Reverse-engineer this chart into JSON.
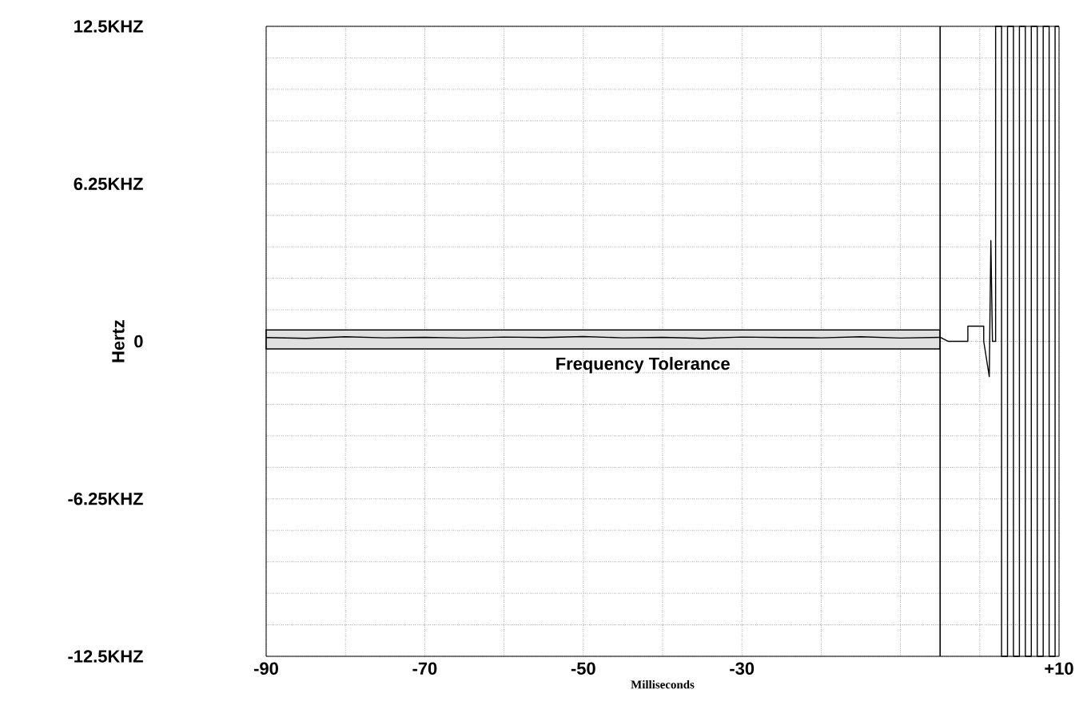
{
  "chart_data": {
    "type": "line",
    "xlabel": "Milliseconds",
    "ylabel": "Hertz",
    "xlim": [
      -90,
      10
    ],
    "ylim": [
      -12.5,
      12.5
    ],
    "xticks": [
      -90,
      {
        "value": -80,
        "label": null
      },
      -70,
      {
        "value": -60,
        "label": null
      },
      -50,
      {
        "value": -40,
        "label": null
      },
      -30,
      {
        "value": -20,
        "label": null
      },
      {
        "value": -10,
        "label": null
      },
      {
        "value": 0,
        "label": null
      },
      {
        "value": 10,
        "label": "+10"
      }
    ],
    "yticks": [
      {
        "value": -12.5,
        "label": "-12.5KHZ"
      },
      {
        "value": -11.25,
        "label": null
      },
      {
        "value": -10,
        "label": null
      },
      {
        "value": -8.75,
        "label": null
      },
      {
        "value": -7.5,
        "label": null
      },
      {
        "value": -6.25,
        "label": "-6.25KHZ"
      },
      {
        "value": -5,
        "label": null
      },
      {
        "value": -3.75,
        "label": null
      },
      {
        "value": -2.5,
        "label": null
      },
      {
        "value": -1.25,
        "label": null
      },
      0,
      {
        "value": 1.25,
        "label": null
      },
      {
        "value": 2.5,
        "label": null
      },
      {
        "value": 3.75,
        "label": null
      },
      {
        "value": 5,
        "label": null
      },
      {
        "value": 6.25,
        "label": "6.25KHZ"
      },
      {
        "value": 7.5,
        "label": null
      },
      {
        "value": 8.75,
        "label": null
      },
      {
        "value": 10,
        "label": null
      },
      {
        "value": 11.25,
        "label": null
      },
      {
        "value": 12.5,
        "label": "12.5KHZ"
      }
    ],
    "grid": true,
    "marker": "none",
    "line_style": "solid",
    "ref_lines": [
      {
        "axis": "x",
        "value": -5,
        "color": "#000000"
      }
    ],
    "bands": [
      {
        "axis": "y",
        "from": -0.3,
        "to": 0.45,
        "label": "Frequency Tolerance",
        "color": "#000000"
      }
    ],
    "series": [
      {
        "color": "#000000",
        "x": [
          -90,
          -85,
          -80,
          -75,
          -70,
          -65,
          -60,
          -55,
          -50,
          -45,
          -40,
          -35,
          -30,
          -25,
          -20,
          -15,
          -10,
          -5,
          -4,
          -1.5,
          -1.5,
          0.5,
          0.5,
          1.2,
          1.4,
          1.6,
          2.0,
          2.0,
          2.75,
          2.75,
          3.5,
          3.5,
          4.25,
          4.25,
          5.0,
          5.0,
          5.75,
          5.75,
          6.5,
          6.5,
          7.25,
          7.25,
          8.0,
          8.0,
          8.75,
          8.75,
          9.5,
          9.5,
          10
        ],
        "values": [
          0.15,
          0.12,
          0.18,
          0.14,
          0.16,
          0.13,
          0.17,
          0.15,
          0.19,
          0.14,
          0.16,
          0.12,
          0.17,
          0.15,
          0.14,
          0.18,
          0.13,
          0.16,
          0,
          0,
          0.6,
          0.6,
          0,
          -1.4,
          4,
          0,
          0,
          12.5,
          12.5,
          -12.5,
          -12.5,
          12.5,
          12.5,
          -12.5,
          -12.5,
          12.5,
          12.5,
          -12.5,
          -12.5,
          12.5,
          12.5,
          -12.5,
          -12.5,
          12.5,
          12.5,
          -12.5,
          -12.5,
          12.5,
          12.5
        ]
      }
    ]
  }
}
